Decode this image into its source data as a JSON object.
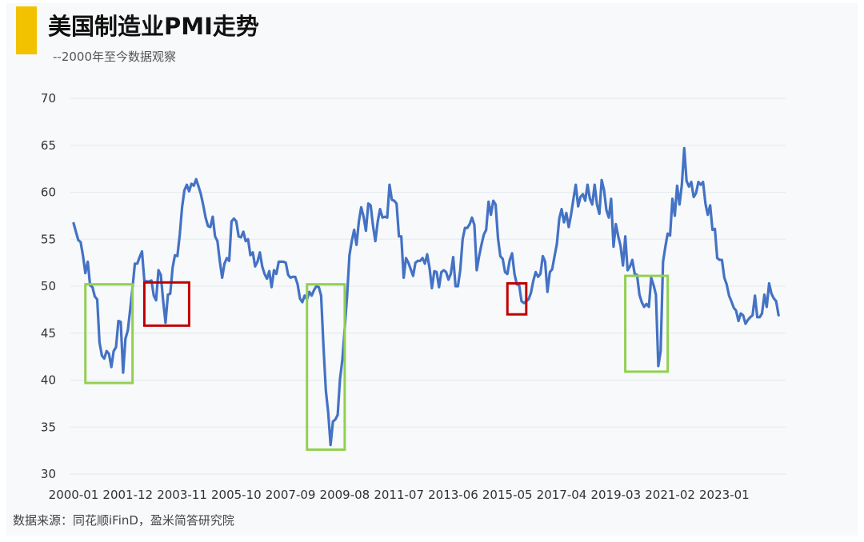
{
  "header": {
    "title": "美国制造业PMI走势",
    "subtitle": "--2000年至今数据观察"
  },
  "footer": {
    "source": "数据来源：同花顺iFinD，盈米简答研究院"
  },
  "colors": {
    "accent": "#f2c200",
    "line": "#4472c4",
    "contraction_box": "#92d050",
    "dip_box": "#c00000",
    "grid": "#e6e9ee"
  },
  "chart_data": {
    "type": "line",
    "title": "美国制造业PMI走势",
    "subtitle": "--2000年至今数据观察",
    "xlabel": "",
    "ylabel": "",
    "ylim": [
      30,
      70
    ],
    "yticks": [
      30,
      35,
      40,
      45,
      50,
      55,
      60,
      65,
      70
    ],
    "x_tick_labels": [
      "2000-01",
      "2001-12",
      "2003-11",
      "2005-10",
      "2007-09",
      "2009-08",
      "2011-07",
      "2013-06",
      "2015-05",
      "2017-04",
      "2019-03",
      "2021-02",
      "2023-01"
    ],
    "x_start": "2000-01",
    "grid": true,
    "legend": "none",
    "series": [
      {
        "values": [
          56.7,
          55.8,
          54.9,
          54.7,
          53.2,
          51.4,
          52.6,
          50.1,
          49.9,
          48.9,
          48.6,
          44.0,
          42.6,
          42.3,
          43.1,
          42.8,
          41.4,
          43.1,
          43.5,
          46.3,
          46.2,
          40.8,
          44.4,
          45.3,
          47.5,
          49.9,
          52.4,
          52.4,
          53.1,
          53.7,
          50.6,
          50.5,
          50.5,
          50.6,
          49.0,
          48.5,
          51.7,
          51.2,
          48.4,
          46.1,
          49.1,
          49.2,
          52.0,
          53.3,
          53.2,
          55.4,
          58.4,
          60.2,
          60.8,
          60.1,
          60.9,
          60.7,
          61.4,
          60.6,
          59.8,
          58.6,
          57.3,
          56.4,
          56.3,
          57.4,
          55.3,
          54.8,
          52.7,
          50.9,
          52.4,
          53.0,
          52.7,
          56.9,
          57.2,
          56.9,
          55.3,
          55.2,
          55.8,
          54.8,
          55.0,
          53.3,
          53.6,
          52.1,
          52.6,
          53.6,
          52.1,
          51.3,
          50.8,
          51.6,
          49.9,
          51.7,
          51.3,
          52.6,
          52.6,
          52.6,
          52.5,
          51.2,
          50.9,
          51.0,
          51.0,
          50.2,
          48.7,
          48.3,
          49.0,
          48.6,
          49.4,
          49.0,
          49.6,
          50.0,
          49.9,
          49.0,
          43.5,
          38.9,
          36.5,
          33.1,
          35.6,
          35.8,
          36.3,
          40.1,
          42.2,
          45.5,
          49.0,
          53.3,
          54.8,
          56.0,
          54.4,
          56.9,
          58.4,
          57.4,
          55.9,
          58.8,
          58.6,
          56.4,
          54.8,
          56.9,
          58.2,
          57.3,
          57.4,
          57.3,
          60.8,
          59.2,
          59.1,
          58.8,
          55.3,
          55.3,
          50.9,
          53.0,
          52.5,
          51.8,
          51.1,
          52.5,
          52.7,
          52.7,
          53.0,
          52.4,
          53.4,
          51.9,
          49.8,
          51.6,
          51.5,
          49.9,
          51.5,
          51.7,
          51.5,
          50.7,
          51.3,
          53.1,
          50.0,
          50.0,
          51.7,
          55.0,
          56.2,
          56.2,
          56.6,
          57.3,
          56.5,
          51.7,
          53.2,
          54.4,
          55.5,
          56.0,
          59.0,
          57.6,
          59.1,
          58.7,
          55.1,
          53.2,
          52.9,
          51.5,
          51.3,
          52.8,
          53.5,
          51.3,
          50.2,
          50.1,
          48.4,
          48.2,
          48.4,
          48.6,
          49.3,
          50.6,
          51.5,
          51.0,
          51.3,
          53.2,
          52.6,
          49.4,
          51.5,
          51.8,
          53.2,
          54.5,
          57.2,
          58.2,
          56.8,
          57.8,
          56.3,
          57.6,
          59.3,
          60.8,
          58.5,
          59.5,
          59.8,
          59.1,
          60.8,
          59.3,
          58.7,
          60.8,
          58.7,
          57.7,
          61.3,
          60.2,
          58.1,
          57.3,
          59.3,
          54.2,
          56.6,
          55.3,
          54.3,
          52.2,
          55.3,
          51.7,
          52.1,
          52.8,
          51.3,
          51.2,
          49.1,
          48.3,
          47.8,
          48.1,
          47.8,
          50.9,
          50.1,
          49.1,
          41.5,
          43.1,
          52.6,
          54.2,
          55.6,
          55.4,
          59.3,
          57.5,
          60.7,
          58.7,
          60.8,
          64.7,
          61.2,
          60.6,
          61.1,
          59.5,
          59.9,
          61.1,
          60.8,
          61.1,
          58.8,
          57.6,
          58.6,
          56.0,
          56.1,
          53.0,
          52.8,
          52.8,
          50.9,
          50.2,
          49.0,
          48.4,
          47.7,
          47.4,
          46.3,
          47.1,
          46.9,
          46.0,
          46.4,
          46.7,
          46.9,
          49.0,
          46.7,
          46.7,
          47.1,
          49.1,
          47.8,
          50.3,
          49.2,
          48.7,
          48.4,
          46.9
        ]
      }
    ],
    "annotations": [
      {
        "label": "",
        "color": "#92d050",
        "from": "2000-06",
        "to": "2002-02",
        "y_range": [
          39.7,
          50.2
        ]
      },
      {
        "label": "",
        "color": "#c00000",
        "from": "2002-07",
        "to": "2004-02",
        "y_range": [
          45.8,
          50.4
        ]
      },
      {
        "label": "",
        "color": "#92d050",
        "from": "2008-04",
        "to": "2009-08",
        "y_range": [
          32.6,
          50.2
        ]
      },
      {
        "label": "",
        "color": "#c00000",
        "from": "2015-05",
        "to": "2016-01",
        "y_range": [
          47.0,
          50.3
        ]
      },
      {
        "label": "",
        "color": "#92d050",
        "from": "2019-07",
        "to": "2021-01",
        "y_range": [
          40.9,
          51.1
        ]
      }
    ]
  }
}
